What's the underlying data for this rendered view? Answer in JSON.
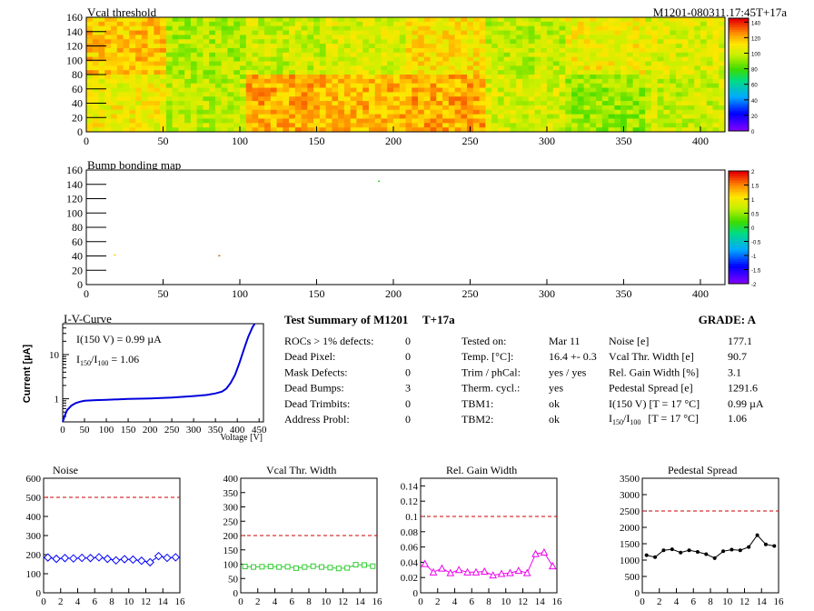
{
  "module_id": "M1201-080311.17:45T+17a",
  "vcal_map": {
    "title": "Vcal threshold",
    "x_ticks": [
      "0",
      "50",
      "100",
      "150",
      "200",
      "250",
      "300",
      "350",
      "400"
    ],
    "y_ticks": [
      "0",
      "20",
      "40",
      "60",
      "80",
      "100",
      "120",
      "140",
      "160"
    ],
    "z_ticks": [
      "0",
      "20",
      "40",
      "60",
      "80",
      "100",
      "120",
      "140"
    ],
    "zlim": [
      0,
      145
    ],
    "roc_mean_thresholds": {
      "top_row": [
        118,
        96,
        100,
        104,
        112,
        98,
        108,
        104
      ],
      "bottom_row": [
        108,
        98,
        122,
        120,
        122,
        102,
        92,
        100
      ]
    }
  },
  "bump_map": {
    "title": "Bump bonding map",
    "x_ticks": [
      "0",
      "50",
      "100",
      "150",
      "200",
      "250",
      "300",
      "350",
      "400"
    ],
    "y_ticks": [
      "0",
      "20",
      "40",
      "60",
      "80",
      "100",
      "120",
      "140",
      "160"
    ],
    "z_ticks": [
      "-2",
      "-1.5",
      "-1",
      "-0.5",
      "0",
      "0.5",
      "1",
      "1.5",
      "2"
    ],
    "zlim": [
      -2,
      2
    ],
    "dead_bumps": [
      {
        "x": 190,
        "y": 144
      },
      {
        "x": 18,
        "y": 41
      },
      {
        "x": 86,
        "y": 40
      }
    ]
  },
  "iv_curve": {
    "title": "I-V-Curve",
    "ylabel": "Current [µA]",
    "xlabel": "Voltage [V]",
    "x_ticks": [
      "0",
      "50",
      "100",
      "150",
      "200",
      "250",
      "300",
      "350",
      "400",
      "450"
    ],
    "y_ticks": [
      "1",
      "10"
    ],
    "annotation_1": "I(150 V) = 0.99 µA",
    "annotation_2_prefix": "I",
    "annotation_2_sub1": "150",
    "annotation_2_mid": "/I",
    "annotation_2_sub2": "100",
    "annotation_2_value": "=  1.06"
  },
  "summary": {
    "title": "Test Summary of M1201",
    "tag": "T+17a",
    "grade_label": "GRADE:  A",
    "left_rows": [
      {
        "label": "ROCs > 1% defects:",
        "value": "0"
      },
      {
        "label": "Dead Pixel:",
        "value": "0"
      },
      {
        "label": "Mask Defects:",
        "value": "0"
      },
      {
        "label": "Dead Bumps:",
        "value": "3"
      },
      {
        "label": "Dead Trimbits:",
        "value": "0"
      },
      {
        "label": "Address Probl:",
        "value": "0"
      }
    ],
    "mid_rows": [
      {
        "label": "Tested on:",
        "value": "Mar 11"
      },
      {
        "label": "Temp. [°C]:",
        "value": "16.4 +- 0.3"
      },
      {
        "label": "Trim / phCal:",
        "value": "yes / yes"
      },
      {
        "label": "Therm. cycl.:",
        "value": "yes"
      },
      {
        "label": "TBM1:",
        "value": "ok"
      },
      {
        "label": "TBM2:",
        "value": "ok"
      }
    ],
    "right_rows": [
      {
        "label": "Noise [e]",
        "value": "177.1"
      },
      {
        "label": "Vcal Thr. Width [e]",
        "value": "90.7"
      },
      {
        "label": "Rel. Gain Width [%]",
        "value": "3.1"
      },
      {
        "label": "Pedestal Spread [e]",
        "value": "1291.6"
      },
      {
        "label": "I(150 V) [T = 17 °C]",
        "value": "0.99 µA"
      }
    ],
    "ratio_row": {
      "prefix": "I",
      "sub1": "150",
      "mid": "/I",
      "sub2": "100",
      "rest": "[T = 17 °C]",
      "value": "1.06"
    }
  },
  "chart_data": [
    {
      "type": "heatmap",
      "title": "Vcal threshold",
      "x_range": [
        0,
        416
      ],
      "y_range": [
        0,
        160
      ],
      "zlim": [
        0,
        145
      ],
      "roc_means_top": [
        118,
        96,
        100,
        104,
        112,
        98,
        108,
        104
      ],
      "roc_means_bottom": [
        108,
        98,
        122,
        120,
        122,
        102,
        92,
        100
      ]
    },
    {
      "type": "heatmap",
      "title": "Bump bonding map",
      "x_range": [
        0,
        416
      ],
      "y_range": [
        0,
        160
      ],
      "zlim": [
        -2,
        2
      ],
      "points": [
        [
          190,
          144
        ],
        [
          18,
          41
        ],
        [
          86,
          40
        ]
      ]
    },
    {
      "type": "line",
      "title": "I-V-Curve",
      "xlabel": "Voltage [V]",
      "ylabel": "Current [µA]",
      "ylog": true,
      "xlim": [
        0,
        460
      ],
      "ylim": [
        0.3,
        50
      ],
      "x": [
        0,
        5,
        10,
        20,
        30,
        40,
        50,
        75,
        100,
        150,
        200,
        250,
        300,
        330,
        350,
        365,
        375,
        385,
        395,
        405,
        415,
        425,
        435,
        440
      ],
      "y": [
        0.28,
        0.42,
        0.55,
        0.7,
        0.8,
        0.86,
        0.9,
        0.93,
        0.95,
        0.99,
        1.02,
        1.07,
        1.15,
        1.22,
        1.32,
        1.45,
        1.7,
        2.3,
        3.5,
        6.5,
        13,
        25,
        42,
        55
      ]
    },
    {
      "type": "line",
      "title": "Noise",
      "xlim": [
        0,
        16
      ],
      "ylim": [
        0,
        600
      ],
      "limit": 500,
      "color": "#0000ff",
      "x": [
        0.5,
        1.5,
        2.5,
        3.5,
        4.5,
        5.5,
        6.5,
        7.5,
        8.5,
        9.5,
        10.5,
        11.5,
        12.5,
        13.5,
        14.5,
        15.5
      ],
      "y": [
        185,
        178,
        182,
        180,
        183,
        182,
        186,
        178,
        170,
        176,
        174,
        168,
        160,
        192,
        183,
        186
      ]
    },
    {
      "type": "line",
      "title": "Vcal Thr. Width",
      "xlim": [
        0,
        16
      ],
      "ylim": [
        0,
        400
      ],
      "limit": 200,
      "color": "#33cc33",
      "x": [
        0.5,
        1.5,
        2.5,
        3.5,
        4.5,
        5.5,
        6.5,
        7.5,
        8.5,
        9.5,
        10.5,
        11.5,
        12.5,
        13.5,
        14.5,
        15.5
      ],
      "y": [
        92,
        90,
        91,
        92,
        90,
        91,
        86,
        90,
        93,
        90,
        88,
        85,
        87,
        98,
        97,
        93
      ]
    },
    {
      "type": "line",
      "title": "Rel. Gain Width",
      "xlim": [
        0,
        16
      ],
      "ylim": [
        0,
        0.15
      ],
      "limit": 0.1,
      "color": "#ee00ee",
      "x": [
        0.5,
        1.5,
        2.5,
        3.5,
        4.5,
        5.5,
        6.5,
        7.5,
        8.5,
        9.5,
        10.5,
        11.5,
        12.5,
        13.5,
        14.5,
        15.5
      ],
      "y": [
        0.038,
        0.027,
        0.032,
        0.026,
        0.03,
        0.027,
        0.027,
        0.028,
        0.023,
        0.025,
        0.026,
        0.029,
        0.026,
        0.051,
        0.053,
        0.035
      ]
    },
    {
      "type": "line",
      "title": "Pedestal Spread",
      "xlim": [
        0,
        16
      ],
      "ylim": [
        0,
        3500
      ],
      "limit": 2500,
      "color": "#000000",
      "x": [
        0.5,
        1.5,
        2.5,
        3.5,
        4.5,
        5.5,
        6.5,
        7.5,
        8.5,
        9.5,
        10.5,
        11.5,
        12.5,
        13.5,
        14.5,
        15.5
      ],
      "y": [
        1150,
        1090,
        1300,
        1330,
        1230,
        1300,
        1250,
        1180,
        1060,
        1270,
        1320,
        1300,
        1400,
        1760,
        1480,
        1430
      ]
    }
  ],
  "small_plots_ticks": {
    "x": [
      "0",
      "2",
      "4",
      "6",
      "8",
      "10",
      "12",
      "14",
      "16"
    ],
    "noise_y": [
      "0",
      "100",
      "200",
      "300",
      "400",
      "500",
      "600"
    ],
    "vcal_y": [
      "0",
      "50",
      "100",
      "150",
      "200",
      "250",
      "300",
      "350",
      "400"
    ],
    "gain_y": [
      "0",
      "0.02",
      "0.04",
      "0.06",
      "0.08",
      "0.1",
      "0.12",
      "0.14"
    ],
    "ped_y": [
      "0",
      "500",
      "1000",
      "1500",
      "2000",
      "2500",
      "3000",
      "3500"
    ]
  }
}
